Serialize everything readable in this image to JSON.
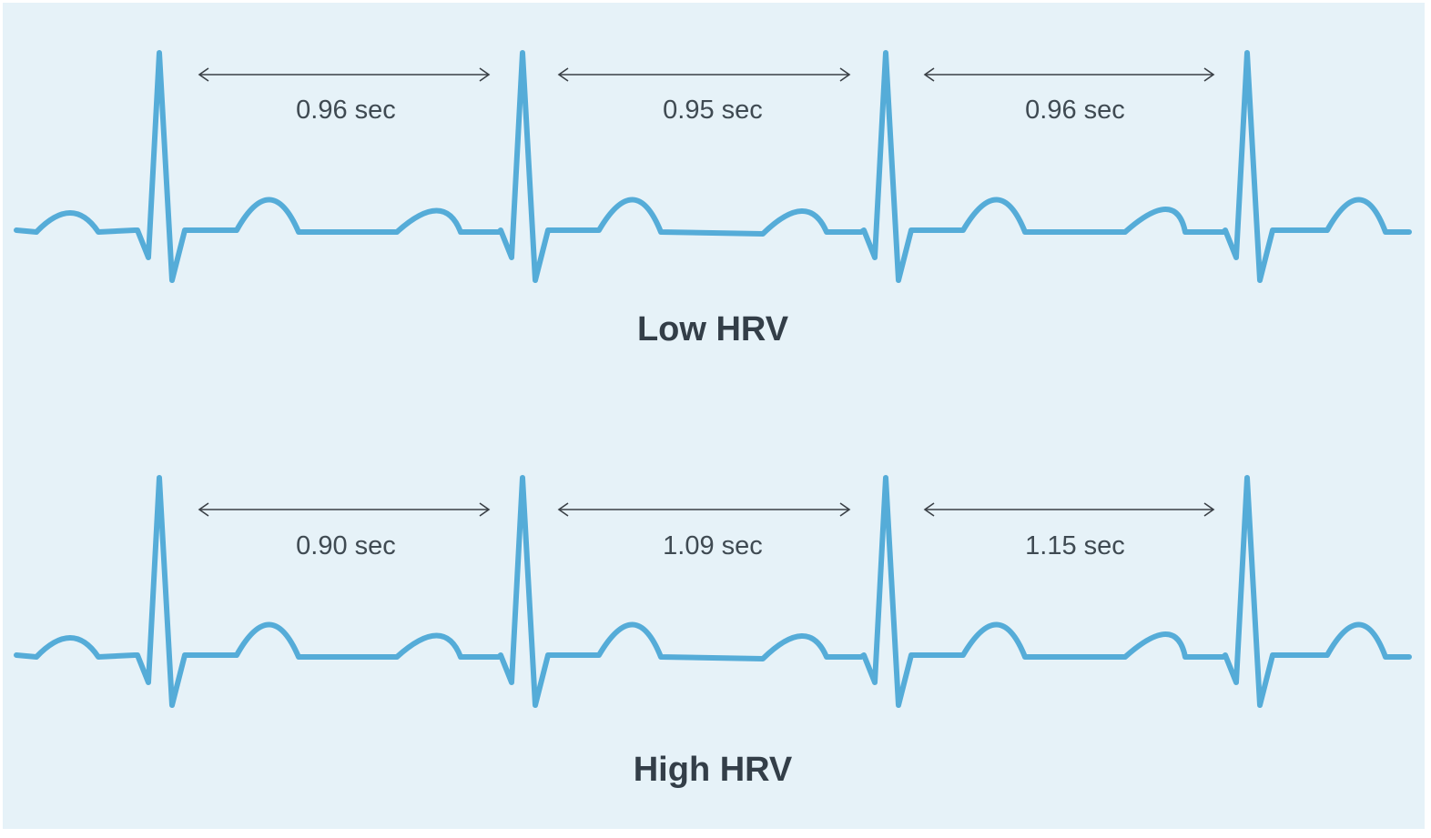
{
  "colors": {
    "background": "#e6f2f8",
    "trace": "#55acd8",
    "text": "#333e48",
    "arrow": "#3a4046"
  },
  "panels": [
    {
      "title": "Low HRV",
      "intervals": [
        "0.96 sec",
        "0.95 sec",
        "0.96 sec"
      ]
    },
    {
      "title": "High HRV",
      "intervals": [
        "0.90 sec",
        "1.09 sec",
        "1.15 sec"
      ]
    }
  ]
}
